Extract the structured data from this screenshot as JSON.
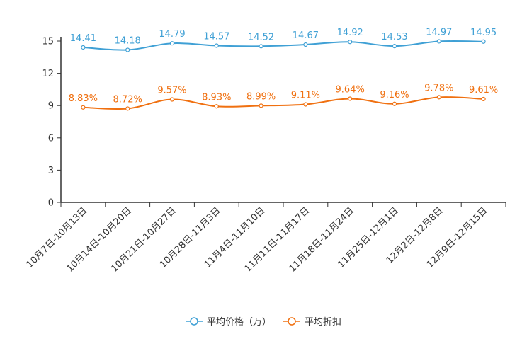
{
  "chart_data": {
    "type": "line",
    "title": "",
    "xlabel": "",
    "ylabel": "",
    "ylim": [
      0,
      15
    ],
    "yticks": [
      0,
      3,
      6,
      9,
      12,
      15
    ],
    "ytick_labels": [
      "0",
      "3",
      "6",
      "9",
      "12",
      "15"
    ],
    "grid": false,
    "legend_position": "bottom",
    "categories": [
      "10月7日-10月13日",
      "10月14日-10月20日",
      "10月21日-10月27日",
      "10月28日-11月3日",
      "11月4日-11月10日",
      "11月11日-11月17日",
      "11月18日-11月24日",
      "11月25日-12月1日",
      "12月2日-12月8日",
      "12月9日-12月15日"
    ],
    "series": [
      {
        "name": "平均价格（万）",
        "color": "#3fa0d5",
        "values": [
          14.41,
          14.18,
          14.79,
          14.57,
          14.52,
          14.67,
          14.92,
          14.53,
          14.97,
          14.95
        ],
        "labels": [
          "14.41",
          "14.18",
          "14.79",
          "14.57",
          "14.52",
          "14.67",
          "14.92",
          "14.53",
          "14.97",
          "14.95"
        ]
      },
      {
        "name": "平均折扣",
        "color": "#f07010",
        "values": [
          8.83,
          8.72,
          9.57,
          8.93,
          8.99,
          9.11,
          9.64,
          9.16,
          9.78,
          9.61
        ],
        "labels": [
          "8.83%",
          "8.72%",
          "9.57%",
          "8.93%",
          "8.99%",
          "9.11%",
          "9.64%",
          "9.16%",
          "9.78%",
          "9.61%"
        ]
      }
    ]
  }
}
